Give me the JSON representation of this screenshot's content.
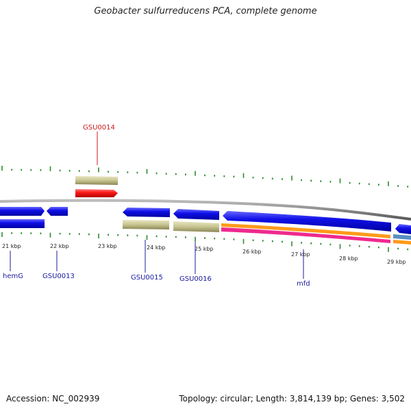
{
  "title": "Geobacter sulfurreducens PCA, complete genome",
  "footer": {
    "accession": "Accession: NC_002939",
    "summary": "Topology: circular; Length: 3,814,139 bp; Genes: 3,502"
  },
  "colors": {
    "forward_gene": "#1010e8",
    "highlight_gene": "#ff1a1a",
    "khaki_track": "#c8c490",
    "orange_track": "#ff9a1a",
    "magenta_track": "#ee2a8e",
    "steel_track": "#5a8fc0",
    "backbone": "#8a8a8a",
    "tick": "#2a8a2a",
    "label_blue": "#1a1aa0",
    "label_red": "#cc1a1a"
  },
  "kbp_labels": [
    "21 kbp",
    "22 kbp",
    "23 kbp",
    "24 kbp",
    "25 kbp",
    "26 kbp",
    "27 kbp",
    "28 kbp",
    "29 kbp"
  ],
  "gene_labels": [
    {
      "text": "GSU0014",
      "color_key": "label_red"
    },
    {
      "text": "hemG",
      "color_key": "label_blue"
    },
    {
      "text": "GSU0013",
      "color_key": "label_blue"
    },
    {
      "text": "GSU0015",
      "color_key": "label_blue"
    },
    {
      "text": "GSU0016",
      "color_key": "label_blue"
    },
    {
      "text": "mfd",
      "color_key": "label_blue"
    }
  ]
}
